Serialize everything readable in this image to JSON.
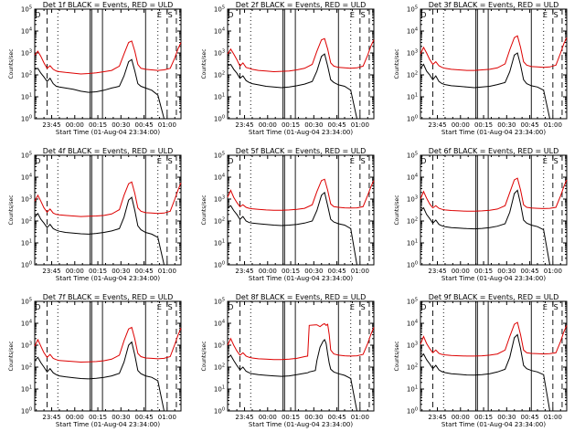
{
  "figure": {
    "panel_titles": [
      "Det 1f BLACK = Events, RED = ULD",
      "Det 2f BLACK = Events, RED = ULD",
      "Det 3f BLACK = Events, RED = ULD",
      "Det 4f BLACK = Events, RED = ULD",
      "Det 5f BLACK = Events, RED = ULD",
      "Det 6f BLACK = Events, RED = ULD",
      "Det 7f BLACK = Events, RED = ULD",
      "Det 8f BLACK = Events, RED = ULD",
      "Det 9f BLACK = Events, RED = ULD"
    ],
    "ylabel": "Counts/sec",
    "xlabel": "Start Time (01-Aug-04 23:34:00)",
    "x_ticks": [
      "23:45",
      "00:00",
      "00:15",
      "00:30",
      "00:45",
      "01:00"
    ],
    "y_ticks": [
      "10^0",
      "10^1",
      "10^2",
      "10^3",
      "10^4",
      "10^5"
    ],
    "corner_labels": [
      "D",
      "E",
      "S"
    ],
    "colors": {
      "events": "#000000",
      "uld": "#dd0000",
      "axes": "#000000"
    }
  },
  "chart_data": [
    {
      "type": "line",
      "title": "Det 1f BLACK = Events, RED = ULD",
      "xlabel": "Start Time (01-Aug-04 23:34:00)",
      "ylabel": "Counts/sec",
      "x_unit": "minutes after 23:34:00",
      "xlim": [
        0,
        95
      ],
      "ylim": [
        1,
        100000
      ],
      "y_scale": "log",
      "x": [
        0,
        2,
        4,
        6,
        8,
        10,
        12,
        14,
        16,
        20,
        25,
        30,
        35,
        40,
        45,
        50,
        55,
        58,
        61,
        63,
        65,
        67,
        69,
        72,
        76,
        80,
        84,
        88,
        91,
        93,
        95
      ],
      "series": [
        {
          "name": "Events",
          "color": "#000000",
          "values": [
            180,
            200,
            120,
            80,
            50,
            70,
            40,
            30,
            28,
            25,
            22,
            18,
            16,
            17,
            20,
            25,
            30,
            90,
            400,
            500,
            150,
            40,
            30,
            25,
            20,
            12,
            1,
            1,
            1,
            1,
            1
          ]
        },
        {
          "name": "ULD",
          "color": "#dd0000",
          "values": [
            800,
            1200,
            700,
            350,
            200,
            260,
            180,
            150,
            140,
            130,
            120,
            110,
            115,
            125,
            140,
            160,
            250,
            900,
            3000,
            3500,
            1200,
            300,
            200,
            180,
            170,
            160,
            170,
            200,
            600,
            1500,
            3000
          ]
        }
      ]
    },
    {
      "type": "line",
      "title": "Det 2f BLACK = Events, RED = ULD",
      "xlabel": "Start Time (01-Aug-04 23:34:00)",
      "ylabel": "Counts/sec",
      "x_unit": "minutes after 23:34:00",
      "xlim": [
        0,
        95
      ],
      "ylim": [
        1,
        100000
      ],
      "y_scale": "log",
      "x": [
        0,
        2,
        4,
        6,
        8,
        10,
        12,
        14,
        16,
        20,
        25,
        30,
        35,
        40,
        45,
        50,
        55,
        58,
        61,
        63,
        65,
        67,
        69,
        72,
        76,
        80,
        84,
        88,
        91,
        93,
        95
      ],
      "series": [
        {
          "name": "Events",
          "color": "#000000",
          "values": [
            250,
            300,
            180,
            120,
            70,
            90,
            55,
            45,
            40,
            35,
            30,
            28,
            26,
            28,
            32,
            38,
            50,
            150,
            700,
            900,
            250,
            60,
            45,
            35,
            30,
            20,
            1,
            1,
            1,
            1,
            1
          ]
        },
        {
          "name": "ULD",
          "color": "#dd0000",
          "values": [
            900,
            1500,
            900,
            500,
            250,
            350,
            220,
            200,
            180,
            160,
            150,
            140,
            145,
            150,
            170,
            200,
            300,
            1200,
            4000,
            4500,
            1500,
            350,
            250,
            220,
            210,
            200,
            210,
            250,
            800,
            2000,
            4000
          ]
        }
      ]
    },
    {
      "type": "line",
      "title": "Det 3f BLACK = Events, RED = ULD",
      "xlabel": "Start Time (01-Aug-04 23:34:00)",
      "ylabel": "Counts/sec",
      "x_unit": "minutes after 23:34:00",
      "xlim": [
        0,
        95
      ],
      "ylim": [
        1,
        100000
      ],
      "y_scale": "log",
      "x": [
        0,
        2,
        4,
        6,
        8,
        10,
        12,
        14,
        16,
        20,
        25,
        30,
        35,
        40,
        45,
        50,
        55,
        58,
        61,
        63,
        65,
        67,
        69,
        72,
        76,
        80,
        84,
        88,
        91,
        93,
        95
      ],
      "series": [
        {
          "name": "Events",
          "color": "#000000",
          "values": [
            200,
            300,
            150,
            100,
            60,
            90,
            50,
            40,
            36,
            32,
            30,
            28,
            26,
            28,
            30,
            36,
            45,
            140,
            800,
            1000,
            280,
            60,
            40,
            32,
            28,
            20,
            1,
            1,
            1,
            1,
            1
          ]
        },
        {
          "name": "ULD",
          "color": "#dd0000",
          "values": [
            900,
            1800,
            1000,
            500,
            300,
            400,
            260,
            220,
            200,
            180,
            170,
            160,
            160,
            170,
            180,
            210,
            320,
            1400,
            5000,
            6000,
            1800,
            400,
            280,
            240,
            230,
            220,
            230,
            280,
            1000,
            2500,
            5000
          ]
        }
      ]
    },
    {
      "type": "line",
      "title": "Det 4f BLACK = Events, RED = ULD",
      "xlabel": "Start Time (01-Aug-04 23:34:00)",
      "ylabel": "Counts/sec",
      "x_unit": "minutes after 23:34:00",
      "xlim": [
        0,
        95
      ],
      "ylim": [
        1,
        100000
      ],
      "y_scale": "log",
      "x": [
        0,
        2,
        4,
        6,
        8,
        10,
        12,
        14,
        16,
        20,
        25,
        30,
        35,
        40,
        45,
        50,
        55,
        58,
        61,
        63,
        65,
        67,
        69,
        72,
        76,
        80,
        84,
        88,
        91,
        93,
        95
      ],
      "series": [
        {
          "name": "Events",
          "color": "#000000",
          "values": [
            150,
            220,
            120,
            80,
            50,
            70,
            45,
            38,
            34,
            30,
            28,
            26,
            25,
            27,
            30,
            35,
            45,
            150,
            900,
            1200,
            300,
            60,
            40,
            30,
            25,
            18,
            1,
            1,
            1,
            1,
            1
          ]
        },
        {
          "name": "ULD",
          "color": "#dd0000",
          "values": [
            800,
            1500,
            800,
            400,
            250,
            350,
            230,
            200,
            190,
            180,
            170,
            160,
            165,
            170,
            180,
            210,
            330,
            1500,
            5000,
            6000,
            1800,
            400,
            280,
            240,
            230,
            220,
            230,
            280,
            1000,
            2500,
            5500
          ]
        }
      ]
    },
    {
      "type": "line",
      "title": "Det 5f BLACK = Events, RED = ULD",
      "xlabel": "Start Time (01-Aug-04 23:34:00)",
      "ylabel": "Counts/sec",
      "x_unit": "minutes after 23:34:00",
      "xlim": [
        0,
        95
      ],
      "ylim": [
        1,
        100000
      ],
      "y_scale": "log",
      "x": [
        0,
        2,
        4,
        6,
        8,
        10,
        12,
        14,
        16,
        20,
        25,
        30,
        35,
        40,
        45,
        50,
        55,
        58,
        61,
        63,
        65,
        67,
        69,
        72,
        76,
        80,
        84,
        88,
        91,
        93,
        95
      ],
      "series": [
        {
          "name": "Events",
          "color": "#000000",
          "values": [
            400,
            500,
            300,
            200,
            120,
            160,
            100,
            85,
            80,
            75,
            70,
            65,
            62,
            65,
            70,
            80,
            100,
            300,
            1500,
            2000,
            500,
            120,
            90,
            75,
            65,
            45,
            1,
            1,
            1,
            1,
            1
          ]
        },
        {
          "name": "ULD",
          "color": "#dd0000",
          "values": [
            1200,
            2500,
            1200,
            700,
            450,
            550,
            420,
            380,
            360,
            340,
            320,
            310,
            310,
            320,
            340,
            380,
            550,
            2200,
            7000,
            8000,
            2500,
            600,
            450,
            420,
            400,
            390,
            400,
            450,
            1500,
            3500,
            7000
          ]
        }
      ]
    },
    {
      "type": "line",
      "title": "Det 6f BLACK = Events, RED = ULD",
      "xlabel": "Start Time (01-Aug-04 23:34:00)",
      "ylabel": "Counts/sec",
      "x_unit": "minutes after 23:34:00",
      "xlim": [
        0,
        95
      ],
      "ylim": [
        1,
        100000
      ],
      "y_scale": "log",
      "x": [
        0,
        2,
        4,
        6,
        8,
        10,
        12,
        14,
        16,
        20,
        25,
        30,
        35,
        40,
        45,
        50,
        55,
        58,
        61,
        63,
        65,
        67,
        69,
        72,
        76,
        80,
        84,
        88,
        91,
        93,
        95
      ],
      "series": [
        {
          "name": "Events",
          "color": "#000000",
          "values": [
            300,
            400,
            200,
            130,
            80,
            110,
            70,
            60,
            55,
            50,
            48,
            45,
            44,
            46,
            50,
            58,
            75,
            250,
            1800,
            2500,
            600,
            110,
            80,
            65,
            55,
            40,
            1,
            1,
            1,
            1,
            1
          ]
        },
        {
          "name": "ULD",
          "color": "#dd0000",
          "values": [
            1000,
            2200,
            1100,
            600,
            400,
            500,
            380,
            340,
            320,
            300,
            290,
            280,
            280,
            290,
            310,
            350,
            500,
            2000,
            7500,
            9000,
            2600,
            550,
            420,
            390,
            380,
            370,
            380,
            420,
            1400,
            3500,
            7500
          ]
        }
      ]
    },
    {
      "type": "line",
      "title": "Det 7f BLACK = Events, RED = ULD",
      "xlabel": "Start Time (01-Aug-04 23:34:00)",
      "ylabel": "Counts/sec",
      "x_unit": "minutes after 23:34:00",
      "xlim": [
        0,
        95
      ],
      "ylim": [
        1,
        100000
      ],
      "y_scale": "log",
      "x": [
        0,
        2,
        4,
        6,
        8,
        10,
        12,
        14,
        16,
        20,
        25,
        30,
        35,
        40,
        45,
        50,
        55,
        58,
        61,
        63,
        65,
        67,
        69,
        72,
        76,
        80,
        84,
        88,
        91,
        93,
        95
      ],
      "series": [
        {
          "name": "Events",
          "color": "#000000",
          "values": [
            200,
            280,
            160,
            100,
            60,
            85,
            55,
            45,
            40,
            36,
            33,
            30,
            29,
            31,
            34,
            40,
            52,
            170,
            1000,
            1400,
            350,
            70,
            50,
            40,
            34,
            24,
            1,
            1,
            1,
            1,
            1
          ]
        },
        {
          "name": "ULD",
          "color": "#dd0000",
          "values": [
            900,
            1800,
            900,
            450,
            280,
            380,
            250,
            220,
            200,
            190,
            180,
            170,
            175,
            180,
            195,
            230,
            350,
            1600,
            5500,
            6500,
            1900,
            420,
            300,
            260,
            250,
            240,
            250,
            300,
            1100,
            2800,
            6000
          ]
        }
      ]
    },
    {
      "type": "line",
      "title": "Det 8f BLACK = Events, RED = ULD",
      "xlabel": "Start Time (01-Aug-04 23:34:00)",
      "ylabel": "Counts/sec",
      "x_unit": "minutes after 23:34:00",
      "xlim": [
        0,
        95
      ],
      "ylim": [
        1,
        100000
      ],
      "y_scale": "log",
      "x": [
        0,
        2,
        4,
        6,
        8,
        10,
        12,
        14,
        16,
        20,
        25,
        30,
        35,
        40,
        45,
        50,
        52,
        53,
        57,
        58,
        60,
        62,
        63,
        64,
        65,
        66,
        67,
        69,
        72,
        76,
        80,
        84,
        88,
        91,
        93,
        95
      ],
      "series": [
        {
          "name": "Events",
          "color": "#000000",
          "values": [
            250,
            350,
            200,
            120,
            75,
            100,
            65,
            55,
            50,
            45,
            42,
            40,
            38,
            40,
            45,
            52,
            55,
            60,
            70,
            200,
            800,
            1500,
            1800,
            1200,
            400,
            150,
            80,
            60,
            50,
            42,
            30,
            1,
            1,
            1,
            1,
            1
          ]
        },
        {
          "name": "ULD",
          "color": "#dd0000",
          "values": [
            1000,
            2000,
            1000,
            550,
            350,
            450,
            320,
            280,
            260,
            240,
            230,
            220,
            220,
            230,
            250,
            300,
            320,
            8000,
            8500,
            8500,
            7000,
            9000,
            9500,
            8000,
            9000,
            3000,
            600,
            400,
            350,
            330,
            320,
            330,
            380,
            1200,
            3000,
            6500
          ]
        }
      ]
    },
    {
      "type": "line",
      "title": "Det 9f BLACK = Events, RED = ULD",
      "xlabel": "Start Time (01-Aug-04 23:34:00)",
      "ylabel": "Counts/sec",
      "x_unit": "minutes after 23:34:00",
      "xlim": [
        0,
        95
      ],
      "ylim": [
        1,
        100000
      ],
      "y_scale": "log",
      "x": [
        0,
        2,
        4,
        6,
        8,
        10,
        12,
        14,
        16,
        20,
        25,
        30,
        35,
        40,
        45,
        50,
        55,
        58,
        61,
        63,
        65,
        67,
        69,
        72,
        76,
        80,
        84,
        88,
        91,
        93,
        95
      ],
      "series": [
        {
          "name": "Events",
          "color": "#000000",
          "values": [
            280,
            400,
            220,
            140,
            85,
            120,
            75,
            62,
            56,
            50,
            47,
            44,
            43,
            45,
            50,
            60,
            80,
            280,
            2200,
            3000,
            700,
            120,
            85,
            70,
            60,
            45,
            1,
            1,
            1,
            1,
            1
          ]
        },
        {
          "name": "ULD",
          "color": "#dd0000",
          "values": [
            1100,
            2500,
            1200,
            700,
            450,
            600,
            420,
            380,
            360,
            340,
            330,
            320,
            320,
            330,
            350,
            400,
            600,
            2500,
            9000,
            11000,
            3000,
            600,
            450,
            420,
            410,
            400,
            410,
            450,
            1500,
            3800,
            8000
          ]
        }
      ]
    }
  ]
}
